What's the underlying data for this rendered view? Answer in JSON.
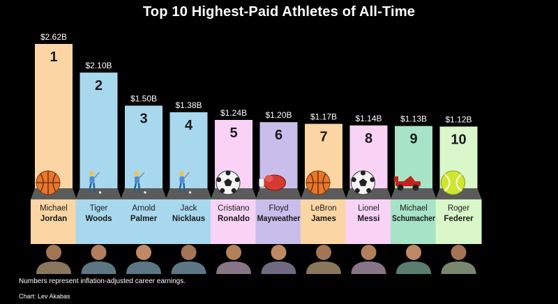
{
  "chart_data": {
    "type": "bar",
    "title": "Top 10 Highest-Paid Athletes of All-Time",
    "xlabel": "",
    "ylabel": "",
    "ylim": [
      0,
      2.62
    ],
    "grid": false,
    "legend": "none",
    "value_labels": [
      "$2.62B",
      "$2.10B",
      "$1.50B",
      "$1.38B",
      "$1.24B",
      "$1.20B",
      "$1.17B",
      "$1.14B",
      "$1.13B",
      "$1.12B"
    ],
    "ranks": [
      "1",
      "2",
      "3",
      "4",
      "5",
      "6",
      "7",
      "8",
      "9",
      "10"
    ],
    "values": [
      2.62,
      2.1,
      1.5,
      1.38,
      1.24,
      1.2,
      1.17,
      1.14,
      1.13,
      1.12
    ],
    "first_names": [
      "Michael",
      "Tiger",
      "Arnold",
      "Jack",
      "Cristiano",
      "Floyd",
      "LeBron",
      "Lionel",
      "Michael",
      "Roger"
    ],
    "last_names": [
      "Jordan",
      "Woods",
      "Palmer",
      "Nicklaus",
      "Ronaldo",
      "Mayweather",
      "James",
      "Messi",
      "Schumacher",
      "Federer"
    ],
    "sports": [
      "basketball",
      "golf",
      "golf",
      "golf",
      "soccer",
      "boxing",
      "basketball",
      "soccer",
      "racing",
      "tennis"
    ],
    "colors": [
      "#FBD6A4",
      "#A8D8EE",
      "#A8D8EE",
      "#A8D8EE",
      "#F8D3F6",
      "#C9BEEB",
      "#FBD6A4",
      "#F8D3F6",
      "#A7E3C6",
      "#D9F7C9"
    ]
  },
  "footnote": "Numbers represent inflation-adjusted career earnings.",
  "credit": "Chart: Lev Akabas"
}
